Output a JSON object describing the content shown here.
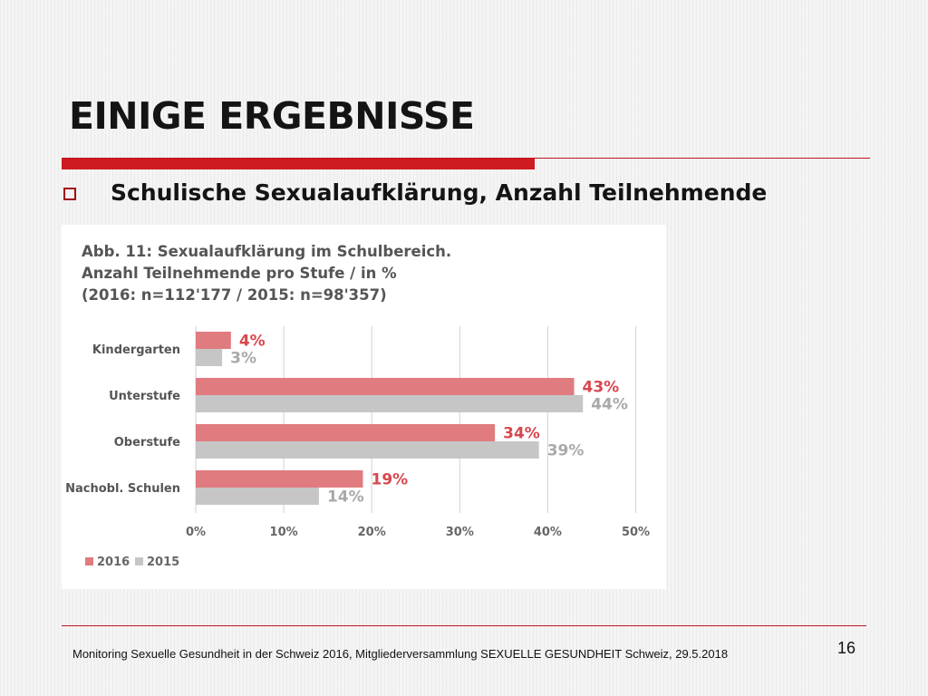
{
  "slide": {
    "title": "EINIGE ERGEBNISSE",
    "bullet": "Schulische Sexualaufklärung, Anzahl Teilnehmende",
    "footer": "Monitoring Sexuelle Gesundheit in der Schweiz 2016, Mitgliederversammlung SEXUELLE GESUNDHEIT Schweiz, 29.5.2018",
    "page_number": "16"
  },
  "colors": {
    "accent_red": "#d01a21",
    "series_2016": "#e07b7f",
    "series_2015": "#c6c6c6",
    "label_2016": "#d9474e",
    "label_2015": "#a9a9a9"
  },
  "chart_data": {
    "type": "bar",
    "orientation": "horizontal",
    "title_lines": [
      "Abb. 11: Sexualaufklärung im Schulbereich.",
      "Anzahl Teilnehmende pro Stufe / in %",
      "(2016: n=112'177 / 2015: n=98'357)"
    ],
    "categories": [
      "Kindergarten",
      "Unterstufe",
      "Oberstufe",
      "Nachobl. Schulen"
    ],
    "series": [
      {
        "name": "2016",
        "values": [
          4,
          43,
          34,
          19
        ],
        "labels": [
          "4%",
          "43%",
          "34%",
          "19%"
        ]
      },
      {
        "name": "2015",
        "values": [
          3,
          44,
          39,
          14
        ],
        "labels": [
          "3%",
          "44%",
          "39%",
          "14%"
        ]
      }
    ],
    "xlim": [
      0,
      50
    ],
    "xticks": [
      0,
      10,
      20,
      30,
      40,
      50
    ],
    "xtick_labels": [
      "0%",
      "10%",
      "20%",
      "30%",
      "40%",
      "50%"
    ],
    "grid": "vertical",
    "legend": "bottom-left"
  }
}
